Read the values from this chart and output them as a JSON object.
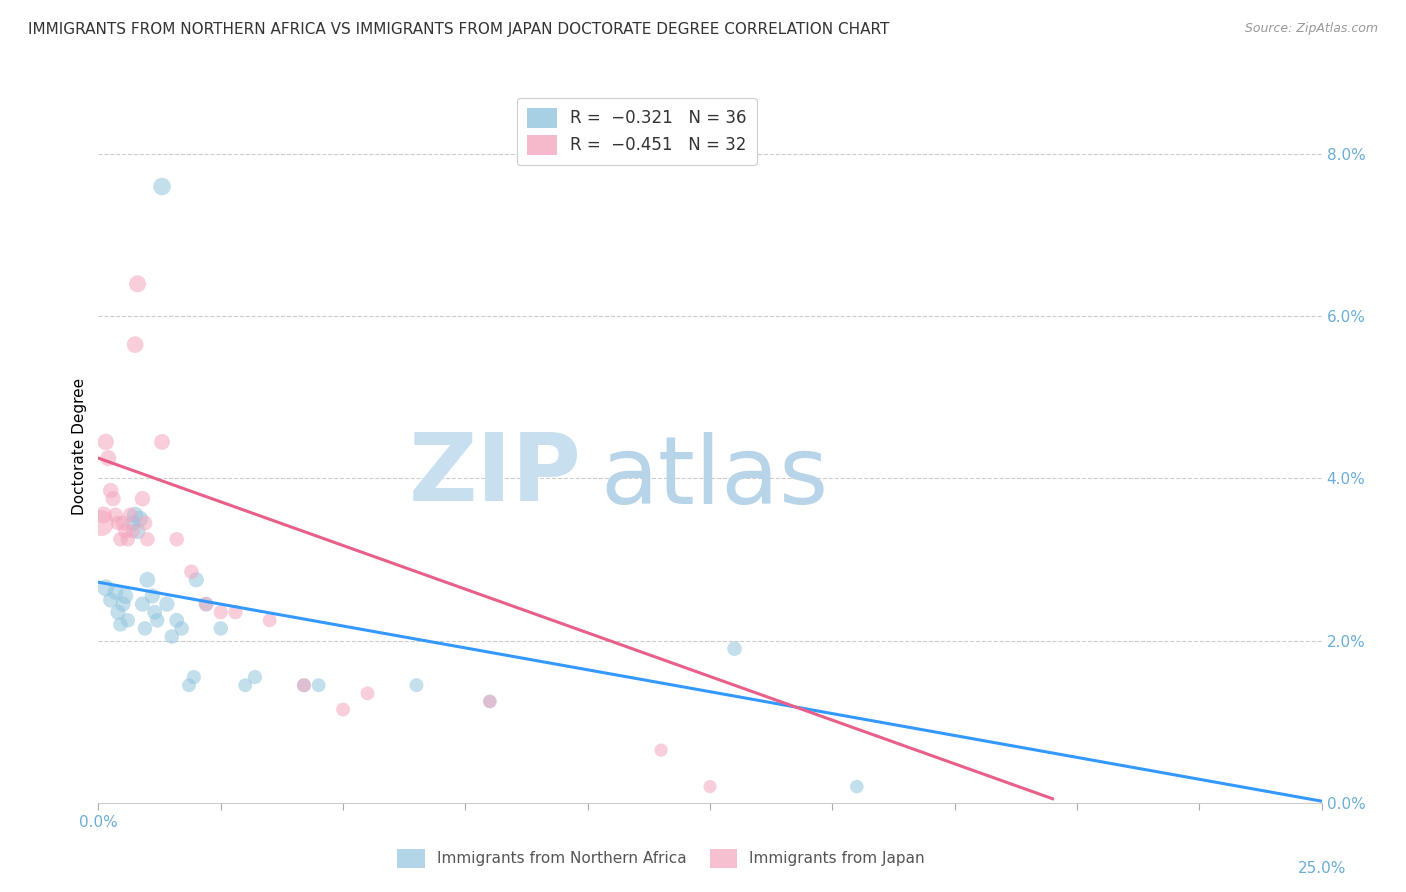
{
  "title": "IMMIGRANTS FROM NORTHERN AFRICA VS IMMIGRANTS FROM JAPAN DOCTORATE DEGREE CORRELATION CHART",
  "source": "Source: ZipAtlas.com",
  "ylabel_left": "Doctorate Degree",
  "ylabel_right_ticks": [
    0.0,
    2.0,
    4.0,
    6.0,
    8.0
  ],
  "xlim": [
    0.0,
    25.0
  ],
  "ylim": [
    0.0,
    8.8
  ],
  "x_tick_positions": [
    0.0,
    2.5,
    5.0,
    7.5,
    10.0,
    12.5,
    15.0,
    17.5,
    20.0,
    22.5,
    25.0
  ],
  "legend_labels_bottom": [
    "Immigrants from Northern Africa",
    "Immigrants from Japan"
  ],
  "blue_scatter": [
    [
      0.15,
      2.65
    ],
    [
      0.25,
      2.5
    ],
    [
      0.35,
      2.6
    ],
    [
      0.4,
      2.35
    ],
    [
      0.45,
      2.2
    ],
    [
      0.5,
      2.45
    ],
    [
      0.55,
      2.55
    ],
    [
      0.6,
      2.25
    ],
    [
      0.7,
      3.45
    ],
    [
      0.75,
      3.55
    ],
    [
      0.8,
      3.35
    ],
    [
      0.85,
      3.5
    ],
    [
      0.9,
      2.45
    ],
    [
      0.95,
      2.15
    ],
    [
      1.0,
      2.75
    ],
    [
      1.1,
      2.55
    ],
    [
      1.15,
      2.35
    ],
    [
      1.2,
      2.25
    ],
    [
      1.3,
      7.6
    ],
    [
      1.4,
      2.45
    ],
    [
      1.5,
      2.05
    ],
    [
      1.6,
      2.25
    ],
    [
      1.7,
      2.15
    ],
    [
      1.85,
      1.45
    ],
    [
      1.95,
      1.55
    ],
    [
      2.0,
      2.75
    ],
    [
      2.2,
      2.45
    ],
    [
      2.5,
      2.15
    ],
    [
      3.0,
      1.45
    ],
    [
      3.2,
      1.55
    ],
    [
      4.2,
      1.45
    ],
    [
      4.5,
      1.45
    ],
    [
      6.5,
      1.45
    ],
    [
      8.0,
      1.25
    ],
    [
      13.0,
      1.9
    ],
    [
      15.5,
      0.2
    ]
  ],
  "pink_scatter": [
    [
      0.05,
      3.45
    ],
    [
      0.1,
      3.55
    ],
    [
      0.15,
      4.45
    ],
    [
      0.2,
      4.25
    ],
    [
      0.25,
      3.85
    ],
    [
      0.3,
      3.75
    ],
    [
      0.35,
      3.55
    ],
    [
      0.4,
      3.45
    ],
    [
      0.45,
      3.25
    ],
    [
      0.5,
      3.45
    ],
    [
      0.55,
      3.35
    ],
    [
      0.6,
      3.25
    ],
    [
      0.65,
      3.55
    ],
    [
      0.7,
      3.35
    ],
    [
      0.75,
      5.65
    ],
    [
      0.8,
      6.4
    ],
    [
      0.9,
      3.75
    ],
    [
      0.95,
      3.45
    ],
    [
      1.0,
      3.25
    ],
    [
      1.3,
      4.45
    ],
    [
      1.6,
      3.25
    ],
    [
      1.9,
      2.85
    ],
    [
      2.2,
      2.45
    ],
    [
      2.5,
      2.35
    ],
    [
      2.8,
      2.35
    ],
    [
      3.5,
      2.25
    ],
    [
      4.2,
      1.45
    ],
    [
      5.0,
      1.15
    ],
    [
      5.5,
      1.35
    ],
    [
      8.0,
      1.25
    ],
    [
      11.5,
      0.65
    ],
    [
      12.5,
      0.2
    ]
  ],
  "blue_scatter_sizes": [
    150,
    120,
    130,
    120,
    110,
    120,
    130,
    110,
    130,
    140,
    130,
    140,
    120,
    110,
    130,
    120,
    115,
    110,
    160,
    120,
    110,
    115,
    110,
    100,
    105,
    120,
    115,
    110,
    100,
    105,
    100,
    100,
    100,
    95,
    110,
    95
  ],
  "pink_scatter_sizes": [
    350,
    150,
    140,
    135,
    125,
    120,
    115,
    110,
    110,
    115,
    110,
    110,
    115,
    110,
    145,
    150,
    125,
    115,
    110,
    130,
    110,
    110,
    105,
    105,
    105,
    100,
    105,
    100,
    100,
    95,
    90,
    90
  ],
  "blue_line": {
    "x_start": 0.0,
    "y_start": 2.72,
    "x_end": 25.0,
    "y_end": 0.02
  },
  "pink_line": {
    "x_start": 0.0,
    "y_start": 4.25,
    "x_end": 19.5,
    "y_end": 0.05
  },
  "blue_color": "#92c5de",
  "pink_color": "#f4a6be",
  "blue_line_color": "#3399ff",
  "pink_line_color": "#e8608a",
  "watermark_zip_color": "#c8dff0",
  "watermark_atlas_color": "#b8d4e8",
  "title_fontsize": 11,
  "source_fontsize": 9,
  "background_color": "#ffffff",
  "grid_color": "#cccccc",
  "axis_color": "#6baed6",
  "right_axis_color": "#6baed6"
}
